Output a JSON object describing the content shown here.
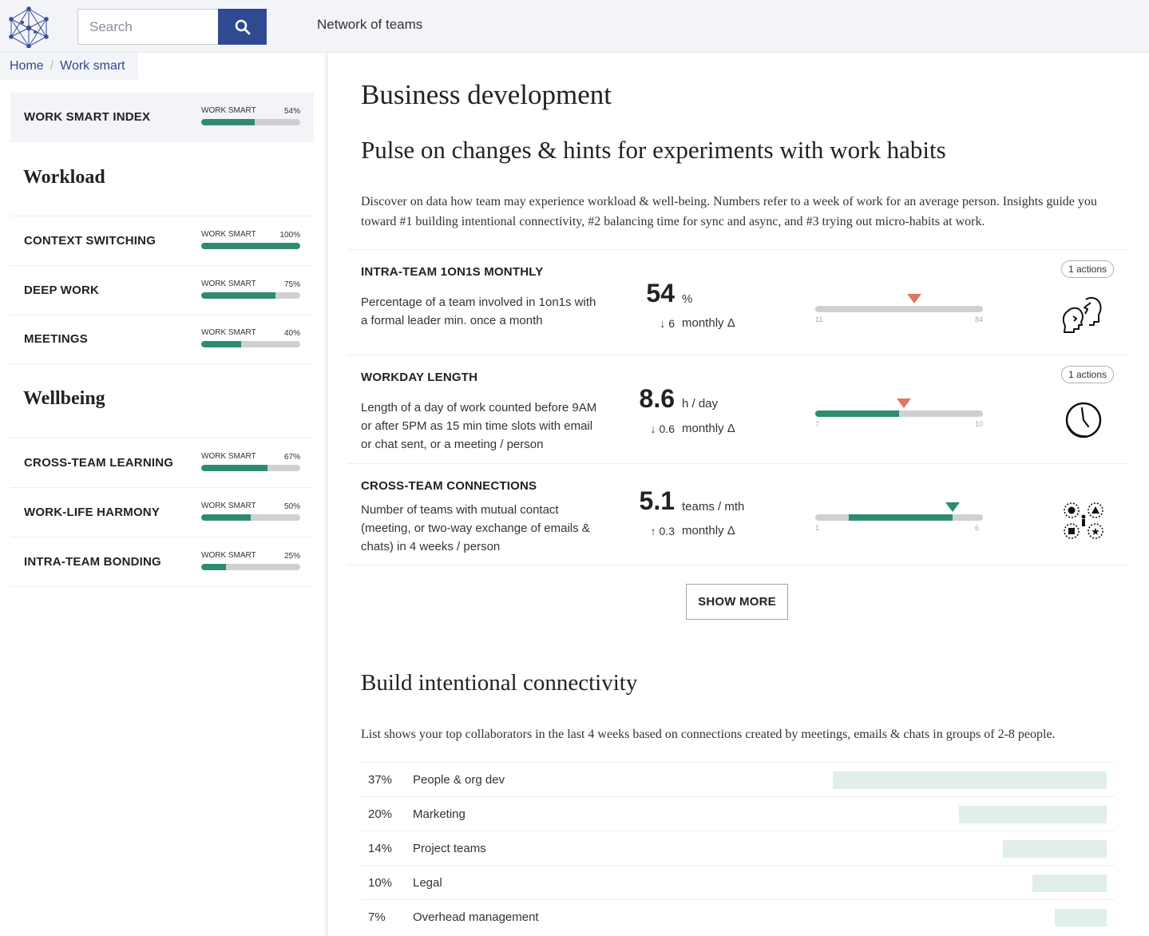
{
  "header": {
    "search_placeholder": "Search",
    "network_link": "Network of teams"
  },
  "breadcrumb": {
    "home": "Home",
    "separator": "/",
    "current": "Work smart"
  },
  "sidebar": {
    "index": {
      "label": "WORK SMART INDEX",
      "tag": "WORK SMART",
      "percent_text": "54%",
      "percent": 54
    },
    "workload_heading": "Workload",
    "workload_items": [
      {
        "label": "CONTEXT SWITCHING",
        "tag": "WORK SMART",
        "percent_text": "100%",
        "percent": 100
      },
      {
        "label": "DEEP WORK",
        "tag": "WORK SMART",
        "percent_text": "75%",
        "percent": 75
      },
      {
        "label": "MEETINGS",
        "tag": "WORK SMART",
        "percent_text": "40%",
        "percent": 40
      }
    ],
    "wellbeing_heading": "Wellbeing",
    "wellbeing_items": [
      {
        "label": "CROSS-TEAM LEARNING",
        "tag": "WORK SMART",
        "percent_text": "67%",
        "percent": 67
      },
      {
        "label": "WORK-LIFE HARMONY",
        "tag": "WORK SMART",
        "percent_text": "50%",
        "percent": 50
      },
      {
        "label": "INTRA-TEAM BONDING",
        "tag": "WORK SMART",
        "percent_text": "25%",
        "percent": 25
      }
    ]
  },
  "main": {
    "title": "Business development",
    "pulse_title": "Pulse on changes & hints for experiments with work habits",
    "pulse_intro": "Discover on data how team may experience workload & well-being. Numbers refer to a week of work for an average person. Insights guide you toward #1 building intentional connectivity, #2 balancing time for sync and async, and #3 trying out micro-habits at work.",
    "cards": [
      {
        "title": "INTRA-TEAM 1ON1S MONTHLY",
        "desc": "Percentage of a team involved in 1on1s with a formal leader min. once a month",
        "value": "54",
        "unit": "%",
        "delta": "↓ 6",
        "delta_label": "monthly Δ",
        "range_min": "11",
        "range_max": "84",
        "fill": 0,
        "marker": 0.59,
        "marker_color": "red",
        "actions": "1 actions",
        "icon": "people-talking-icon"
      },
      {
        "title": "WORKDAY LENGTH",
        "desc": "Length of a day of work counted before 9AM or after 5PM as 15 min time slots with email or chat sent, or a meeting / person",
        "value": "8.6",
        "unit": "h / day",
        "delta": "↓ 0.6",
        "delta_label": "monthly Δ",
        "range_min": "7",
        "range_max": "10",
        "fill": 0.5,
        "marker": 0.53,
        "marker_color": "red",
        "actions": "1 actions",
        "icon": "clock-icon"
      },
      {
        "title": "CROSS-TEAM CONNECTIONS",
        "desc": "Number of teams with mutual contact (meeting, or two-way exchange of emails & chats) in 4 weeks / person",
        "value": "5.1",
        "unit": "teams / mth",
        "delta": "↑ 0.3",
        "delta_label": "monthly Δ",
        "range_min": "1",
        "range_max": "6",
        "fill_start": 0.2,
        "fill": 0.82,
        "marker": 0.82,
        "marker_color": "green",
        "actions": "",
        "icon": "team-connections-icon"
      }
    ],
    "show_more": "SHOW MORE",
    "connect_title": "Build intentional connectivity",
    "connect_intro": "List shows your top collaborators in the last 4 weeks based on connections created by meetings, emails & chats in groups of 2-8 people.",
    "collaborators": [
      {
        "pct_text": "37%",
        "name": "People & org dev",
        "share": 37
      },
      {
        "pct_text": "20%",
        "name": "Marketing",
        "share": 20
      },
      {
        "pct_text": "14%",
        "name": "Project teams",
        "share": 14
      },
      {
        "pct_text": "10%",
        "name": "Legal",
        "share": 10
      },
      {
        "pct_text": "7%",
        "name": "Overhead management",
        "share": 7
      }
    ]
  },
  "colors": {
    "brand": "#2f4a8f",
    "accent": "#2e8b72",
    "marker_red": "#e07563",
    "bar_light": "#e1efeb"
  }
}
